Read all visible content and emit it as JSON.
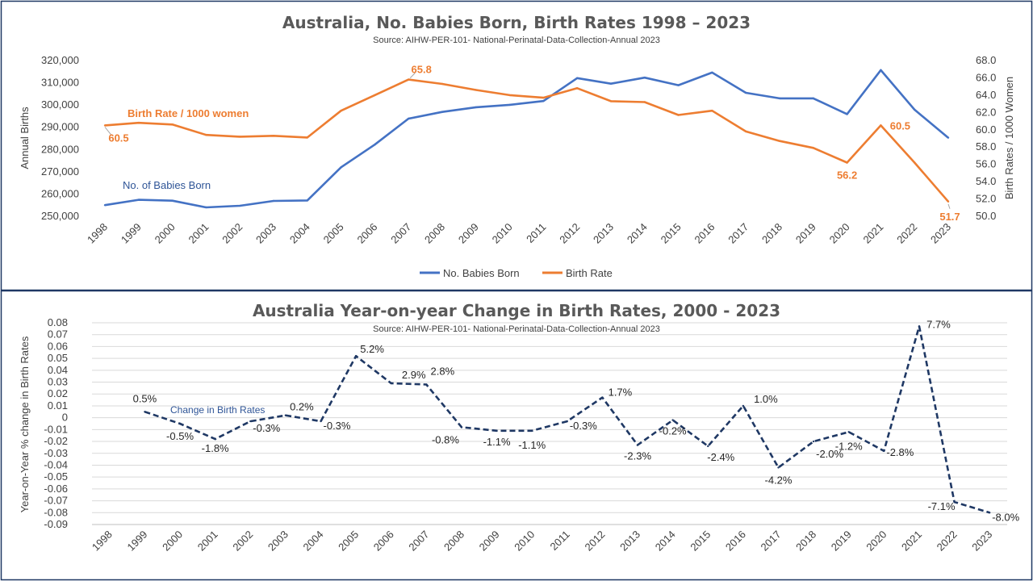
{
  "chart_data": [
    {
      "type": "line",
      "title": "Australia, No. Babies Born, Birth Rates 1998 – 2023",
      "subtitle": "Source: AIHW-PER-101- National-Perinatal-Data-Collection-Annual 2023",
      "x": [
        "1998",
        "1999",
        "2000",
        "2001",
        "2002",
        "2003",
        "2004",
        "2005",
        "2006",
        "2007",
        "2008",
        "2009",
        "2010",
        "2011",
        "2012",
        "2013",
        "2014",
        "2015",
        "2016",
        "2017",
        "2018",
        "2019",
        "2020",
        "2021",
        "2022",
        "2023"
      ],
      "ylabel": "Annual Births",
      "y2label": "Birth Rates / 1000 Women",
      "ylim": [
        250000,
        320000
      ],
      "y2lim": [
        50.0,
        68.0
      ],
      "yticks": [
        "250,000",
        "260,000",
        "270,000",
        "280,000",
        "290,000",
        "300,000",
        "310,000",
        "320,000"
      ],
      "y2ticks": [
        "50.0",
        "52.0",
        "54.0",
        "56.0",
        "58.0",
        "60.0",
        "62.0",
        "64.0",
        "66.0",
        "68.0"
      ],
      "series": [
        {
          "name": "No. Babies Born",
          "axis": "left",
          "color": "#4472C4",
          "values": [
            255000,
            257400,
            257000,
            254000,
            254700,
            256900,
            257100,
            272000,
            282200,
            293900,
            296900,
            299000,
            300100,
            301800,
            312100,
            309600,
            312300,
            308900,
            314600,
            305500,
            303000,
            303000,
            295900,
            315700,
            297900,
            285300
          ]
        },
        {
          "name": "Birth Rate",
          "axis": "right",
          "color": "#ED7D31",
          "values": [
            60.5,
            60.8,
            60.6,
            59.4,
            59.2,
            59.3,
            59.1,
            62.2,
            64.0,
            65.8,
            65.3,
            64.6,
            64.0,
            63.7,
            64.8,
            63.3,
            63.2,
            61.7,
            62.2,
            59.8,
            58.7,
            57.9,
            56.2,
            60.5,
            56.2,
            51.7
          ]
        }
      ],
      "point_labels": [
        {
          "series": 1,
          "index": 0,
          "text": "60.5"
        },
        {
          "series": 1,
          "index": 9,
          "text": "65.8"
        },
        {
          "series": 1,
          "index": 22,
          "text": "56.2"
        },
        {
          "series": 1,
          "index": 23,
          "text": "60.5"
        },
        {
          "series": 1,
          "index": 25,
          "text": "51.7"
        }
      ],
      "annotations": [
        "Birth Rate / 1000 women",
        "No. of Babies Born"
      ],
      "legend": [
        "No. Babies Born",
        "Birth Rate"
      ],
      "legend_position": "bottom"
    },
    {
      "type": "line",
      "title": "Australia Year-on-year Change in Birth Rates, 2000 - 2023",
      "subtitle": "Source: AIHW-PER-101- National-Perinatal-Data-Collection-Annual 2023",
      "x": [
        "1998",
        "1999",
        "2000",
        "2001",
        "2002",
        "2003",
        "2004",
        "2005",
        "2006",
        "2007",
        "2008",
        "2009",
        "2010",
        "2011",
        "2012",
        "2013",
        "2014",
        "2015",
        "2016",
        "2017",
        "2018",
        "2019",
        "2020",
        "2021",
        "2022",
        "2023"
      ],
      "ylabel": "Year-on-Year % change in Birth Rates",
      "ylim": [
        -0.09,
        0.08
      ],
      "yticks": [
        "-0.09",
        "-0.08",
        "-0.07",
        "-0.06",
        "-0.05",
        "-0.04",
        "-0.03",
        "-0.02",
        "-0.01",
        "0",
        "0.01",
        "0.02",
        "0.03",
        "0.04",
        "0.05",
        "0.06",
        "0.07",
        "0.08"
      ],
      "grid": true,
      "series": [
        {
          "name": "Change in Birth Rates",
          "color": "#1F3864",
          "style": "dashed",
          "values": [
            null,
            0.005,
            -0.005,
            -0.018,
            -0.003,
            0.002,
            -0.003,
            0.052,
            0.029,
            0.028,
            -0.008,
            -0.011,
            -0.011,
            -0.003,
            0.017,
            -0.023,
            -0.002,
            -0.024,
            0.01,
            -0.042,
            -0.02,
            -0.012,
            -0.028,
            0.077,
            -0.071,
            -0.08
          ]
        }
      ],
      "data_labels": [
        "",
        "0.5%",
        "-0.5%",
        "-1.8%",
        "-0.3%",
        "0.2%",
        "-0.3%",
        "5.2%",
        "2.9%",
        "2.8%",
        "-0.8%",
        "-1.1%",
        "-1.1%",
        "-0.3%",
        "1.7%",
        "-2.3%",
        "-0.2%",
        "-2.4%",
        "1.0%",
        "-4.2%",
        "-2.0%",
        "-1.2%",
        "-2.8%",
        "7.7%",
        "-7.1%",
        "-8.0%"
      ],
      "annotations": [
        "Change in Birth Rates"
      ]
    }
  ]
}
